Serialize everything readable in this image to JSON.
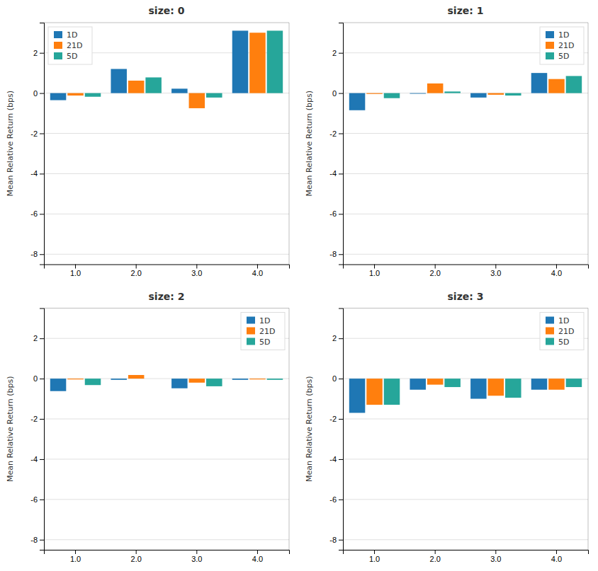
{
  "chart_data": [
    {
      "type": "bar",
      "title": "size: 0",
      "ylabel": "Mean Relative Return (bps)",
      "categories": [
        "1.0",
        "2.0",
        "3.0",
        "4.0"
      ],
      "series": [
        {
          "name": "1D",
          "color": "#1f77b4",
          "values": [
            -0.35,
            1.2,
            0.22,
            3.1
          ]
        },
        {
          "name": "21D",
          "color": "#ff7f0e",
          "values": [
            -0.12,
            0.62,
            -0.75,
            3.0
          ]
        },
        {
          "name": "5D",
          "color": "#26a69a",
          "values": [
            -0.18,
            0.78,
            -0.22,
            3.1
          ]
        }
      ],
      "ylim": [
        -8.5,
        3.5
      ],
      "yticks": [
        -8,
        -6,
        -4,
        -2,
        0,
        2
      ],
      "grid": true,
      "legend": "upper left"
    },
    {
      "type": "bar",
      "title": "size: 1",
      "ylabel": "Mean Relative Return (bps)",
      "categories": [
        "1.0",
        "2.0",
        "3.0",
        "4.0"
      ],
      "series": [
        {
          "name": "1D",
          "color": "#1f77b4",
          "values": [
            -0.85,
            -0.03,
            -0.22,
            1.0
          ]
        },
        {
          "name": "21D",
          "color": "#ff7f0e",
          "values": [
            -0.04,
            0.48,
            -0.08,
            0.7
          ]
        },
        {
          "name": "5D",
          "color": "#26a69a",
          "values": [
            -0.25,
            0.08,
            -0.12,
            0.85
          ]
        }
      ],
      "ylim": [
        -8.5,
        3.5
      ],
      "yticks": [
        -8,
        -6,
        -4,
        -2,
        0,
        2
      ],
      "grid": true,
      "legend": "upper right"
    },
    {
      "type": "bar",
      "title": "size: 2",
      "ylabel": "Mean Relative Return (bps)",
      "categories": [
        "1.0",
        "2.0",
        "3.0",
        "4.0"
      ],
      "series": [
        {
          "name": "1D",
          "color": "#1f77b4",
          "values": [
            -0.62,
            -0.06,
            -0.48,
            -0.06
          ]
        },
        {
          "name": "21D",
          "color": "#ff7f0e",
          "values": [
            -0.04,
            0.18,
            -0.2,
            -0.04
          ]
        },
        {
          "name": "5D",
          "color": "#26a69a",
          "values": [
            -0.32,
            0.0,
            -0.38,
            -0.06
          ]
        }
      ],
      "ylim": [
        -8.5,
        3.5
      ],
      "yticks": [
        -8,
        -6,
        -4,
        -2,
        0,
        2
      ],
      "grid": true,
      "legend": "upper right"
    },
    {
      "type": "bar",
      "title": "size: 3",
      "ylabel": "Mean Relative Return (bps)",
      "categories": [
        "1.0",
        "2.0",
        "3.0",
        "4.0"
      ],
      "series": [
        {
          "name": "1D",
          "color": "#1f77b4",
          "values": [
            -1.7,
            -0.55,
            -1.0,
            -0.55
          ]
        },
        {
          "name": "21D",
          "color": "#ff7f0e",
          "values": [
            -1.3,
            -0.3,
            -0.85,
            -0.55
          ]
        },
        {
          "name": "5D",
          "color": "#26a69a",
          "values": [
            -1.3,
            -0.42,
            -0.95,
            -0.42
          ]
        }
      ],
      "ylim": [
        -8.5,
        3.5
      ],
      "yticks": [
        -8,
        -6,
        -4,
        -2,
        0,
        2
      ],
      "grid": true,
      "legend": "upper right"
    }
  ]
}
